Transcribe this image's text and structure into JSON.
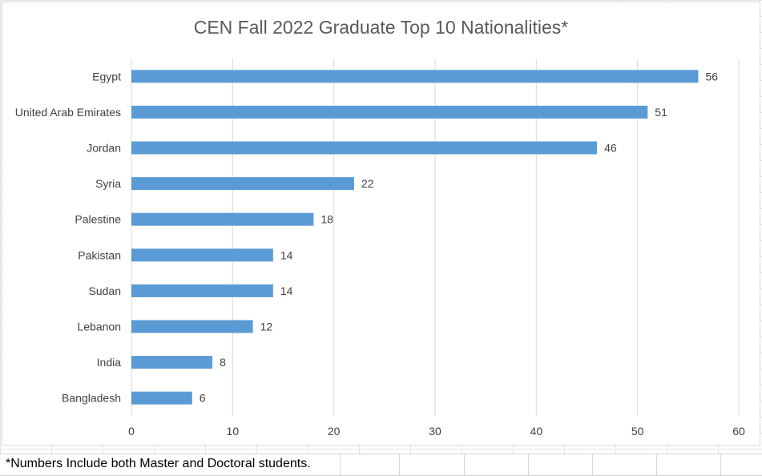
{
  "chart_data": {
    "type": "bar",
    "orientation": "horizontal",
    "title": "CEN Fall 2022 Graduate Top 10 Nationalities*",
    "categories": [
      "Egypt",
      "United Arab Emirates",
      "Jordan",
      "Syria",
      "Palestine",
      "Pakistan",
      "Sudan",
      "Lebanon",
      "India",
      "Bangladesh"
    ],
    "values": [
      56,
      51,
      46,
      22,
      18,
      14,
      14,
      12,
      8,
      6
    ],
    "xlim": [
      0,
      60
    ],
    "xticks": [
      0,
      10,
      20,
      30,
      40,
      50,
      60
    ],
    "grid": "vertical",
    "data_labels": true,
    "legend": "none",
    "bar_color": "#5b9bd5",
    "gridline_color": "#d9d9d9",
    "text_color": "#404040"
  },
  "footnote": "*Numbers Include both Master and Doctoral students."
}
